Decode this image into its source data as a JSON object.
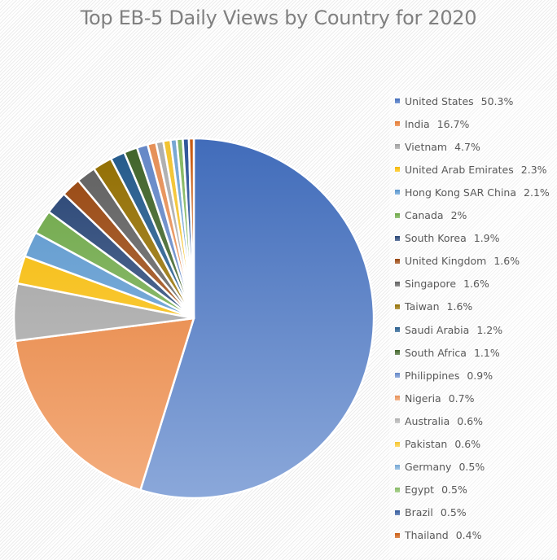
{
  "chart_data": {
    "type": "pie",
    "title": "Top EB-5 Daily Views by Country for 2020",
    "categories": [
      "United States",
      "India",
      "Vietnam",
      "United Arab Emirates",
      "Hong Kong SAR China",
      "Canada",
      "South Korea",
      "United Kingdom",
      "Singapore",
      "Taiwan",
      "Saudi Arabia",
      "South Africa",
      "Philippines",
      "Nigeria",
      "Australia",
      "Pakistan",
      "Germany",
      "Egypt",
      "Brazil",
      "Thailand"
    ],
    "values": [
      50.3,
      16.7,
      4.7,
      2.3,
      2.1,
      2,
      1.9,
      1.6,
      1.6,
      1.6,
      1.2,
      1.1,
      0.9,
      0.7,
      0.6,
      0.6,
      0.5,
      0.5,
      0.5,
      0.4
    ],
    "labels": [
      "50.3%",
      "16.7%",
      "4.7%",
      "2.3%",
      "2.1%",
      "2%",
      "1.9%",
      "1.6%",
      "1.6%",
      "1.6%",
      "1.2%",
      "1.1%",
      "0.9%",
      "0.7%",
      "0.6%",
      "0.6%",
      "0.5%",
      "0.5%",
      "0.5%",
      "0.4%"
    ],
    "colors": [
      "#4472C4",
      "#ED7D31",
      "#A5A5A5",
      "#FFC000",
      "#5B9BD5",
      "#70AD47",
      "#264478",
      "#9E480E",
      "#636363",
      "#997300",
      "#255E91",
      "#43682B",
      "#698ED0",
      "#F1975A",
      "#B7B7B7",
      "#FFCD33",
      "#7CAFDD",
      "#8CC168",
      "#335AA1",
      "#D26012"
    ],
    "legend_position": "right",
    "start_angle": 0,
    "direction": "clockwise"
  },
  "legend": {
    "items": [
      {
        "name": "United States",
        "pct": "50.3%"
      },
      {
        "name": "India",
        "pct": "16.7%"
      },
      {
        "name": "Vietnam",
        "pct": "4.7%"
      },
      {
        "name": "United Arab Emirates",
        "pct": "2.3%"
      },
      {
        "name": "Hong Kong SAR China",
        "pct": "2.1%"
      },
      {
        "name": "Canada",
        "pct": "2%"
      },
      {
        "name": "South Korea",
        "pct": "1.9%"
      },
      {
        "name": "United Kingdom",
        "pct": "1.6%"
      },
      {
        "name": "Singapore",
        "pct": "1.6%"
      },
      {
        "name": "Taiwan",
        "pct": "1.6%"
      },
      {
        "name": "Saudi Arabia",
        "pct": "1.2%"
      },
      {
        "name": "South Africa",
        "pct": "1.1%"
      },
      {
        "name": "Philippines",
        "pct": "0.9%"
      },
      {
        "name": "Nigeria",
        "pct": "0.7%"
      },
      {
        "name": "Australia",
        "pct": "0.6%"
      },
      {
        "name": "Pakistan",
        "pct": "0.6%"
      },
      {
        "name": "Germany",
        "pct": "0.5%"
      },
      {
        "name": "Egypt",
        "pct": "0.5%"
      },
      {
        "name": "Brazil",
        "pct": "0.5%"
      },
      {
        "name": "Thailand",
        "pct": "0.4%"
      }
    ]
  }
}
